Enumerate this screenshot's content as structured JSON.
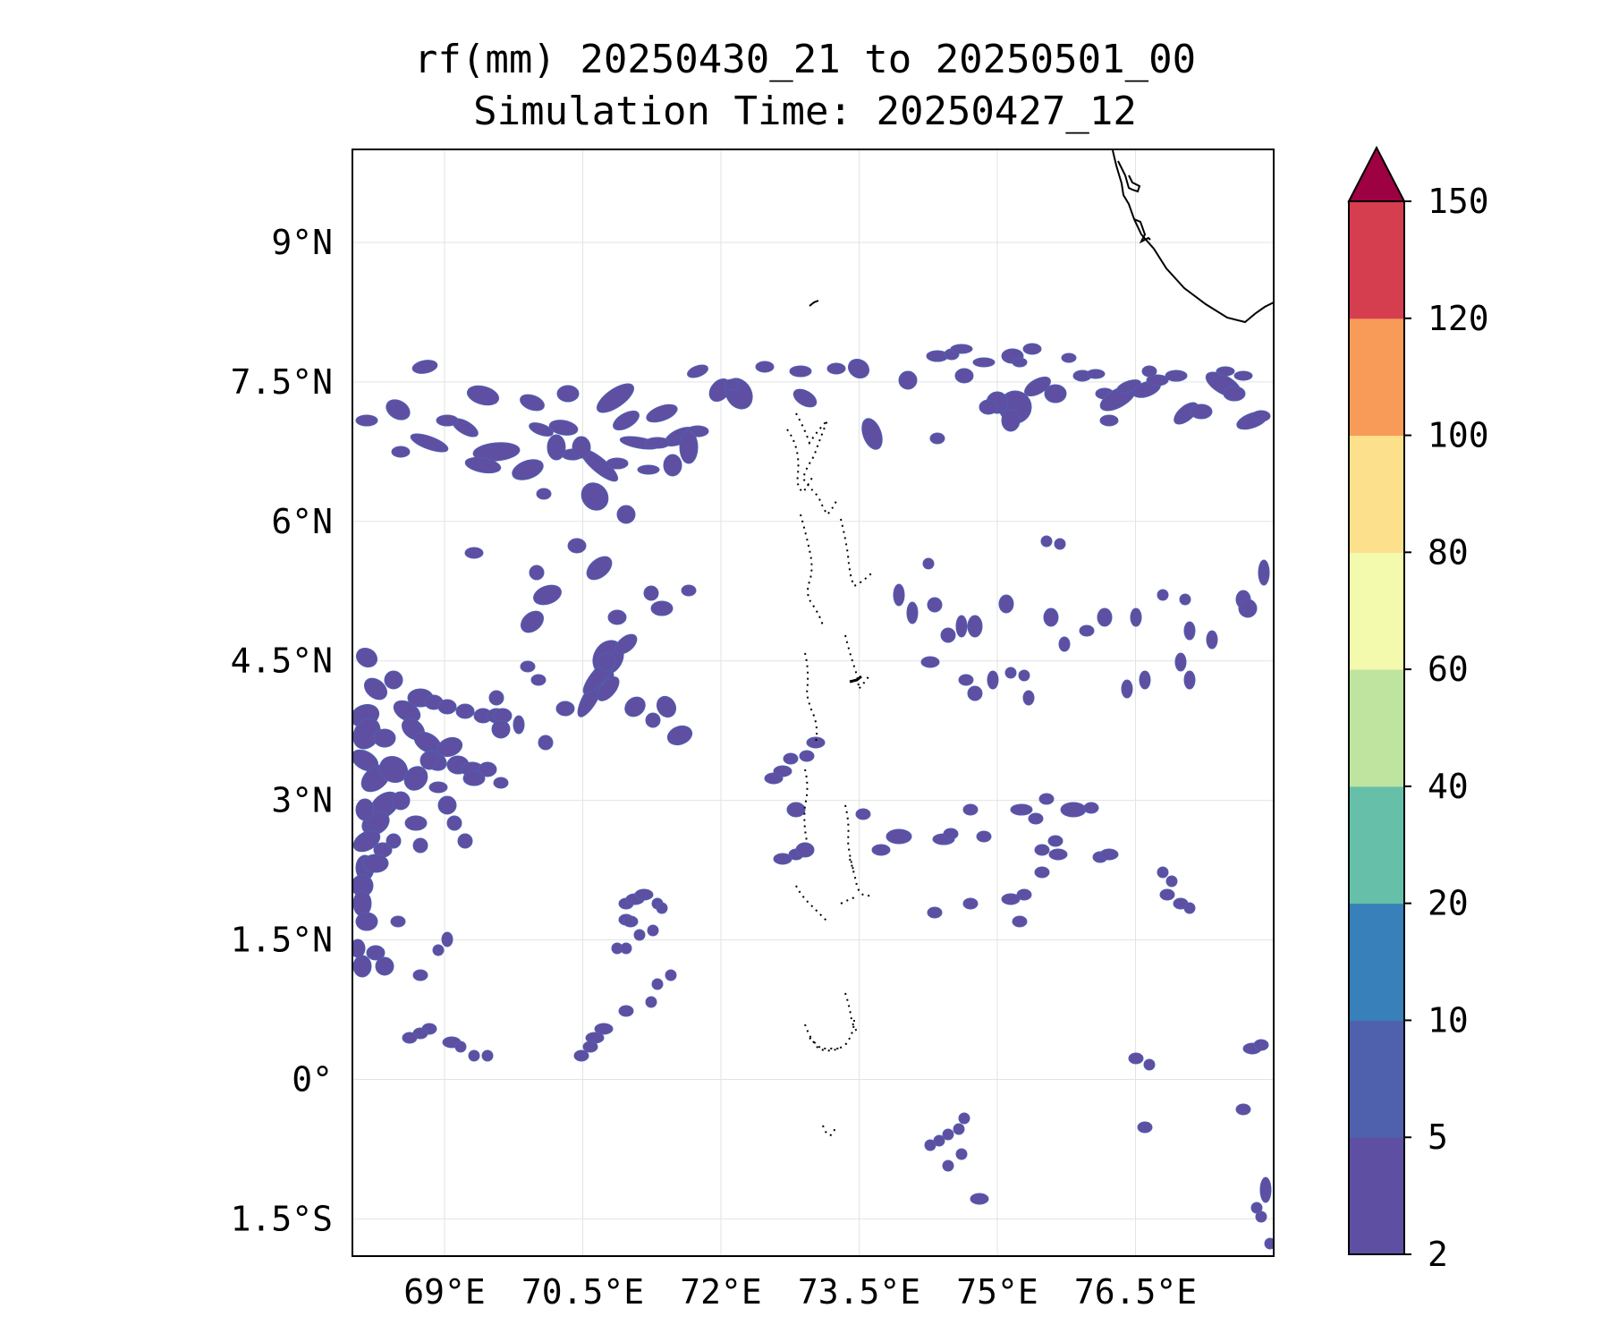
{
  "title": {
    "line1": "rf(mm) 20250430_21 to 20250501_00",
    "line2": "Simulation Time: 20250427_12"
  },
  "map": {
    "lon_range": [
      68.0,
      78.0
    ],
    "lat_range": [
      -1.9,
      10.0
    ],
    "lon_ticks": [
      {
        "value": 69.0,
        "label": "69°E"
      },
      {
        "value": 70.5,
        "label": "70.5°E"
      },
      {
        "value": 72.0,
        "label": "72°E"
      },
      {
        "value": 73.5,
        "label": "73.5°E"
      },
      {
        "value": 75.0,
        "label": "75°E"
      },
      {
        "value": 76.5,
        "label": "76.5°E"
      }
    ],
    "lat_ticks": [
      {
        "value": 9.0,
        "label": "9°N"
      },
      {
        "value": 7.5,
        "label": "7.5°N"
      },
      {
        "value": 6.0,
        "label": "6°N"
      },
      {
        "value": 4.5,
        "label": "4.5°N"
      },
      {
        "value": 3.0,
        "label": "3°N"
      },
      {
        "value": 1.5,
        "label": "1.5°N"
      },
      {
        "value": 0.0,
        "label": "0°"
      },
      {
        "value": -1.5,
        "label": "1.5°S"
      }
    ],
    "gridlines": true,
    "rain_color": "#5e4fa2",
    "rain_edge_color": "#4f5fae"
  },
  "colorbar": {
    "levels": [
      {
        "label": "2",
        "color": "#5e4fa2"
      },
      {
        "label": "5",
        "color": "#4f61ad"
      },
      {
        "label": "10",
        "color": "#3880b9"
      },
      {
        "label": "20",
        "color": "#66bfa9"
      },
      {
        "label": "40",
        "color": "#bee4a0"
      },
      {
        "label": "60",
        "color": "#f3f9ad"
      },
      {
        "label": "80",
        "color": "#fde08b"
      },
      {
        "label": "100",
        "color": "#f89a58"
      },
      {
        "label": "120",
        "color": "#d53e4f"
      },
      {
        "label": "150",
        "color": "#9e0142"
      }
    ],
    "extend": "max"
  }
}
